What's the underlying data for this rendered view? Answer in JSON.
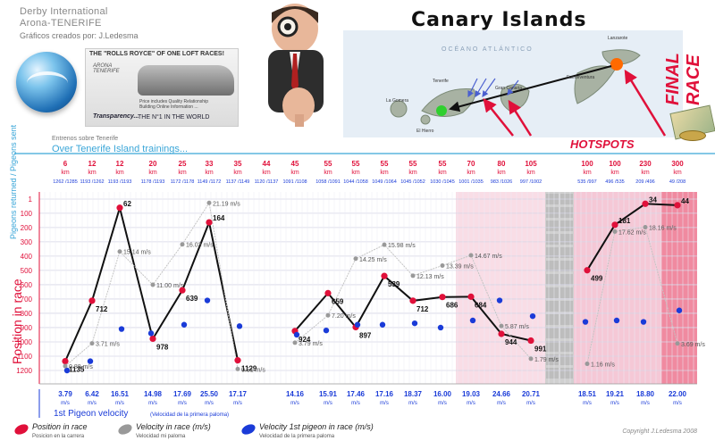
{
  "header": {
    "title_line1": "Derby International",
    "title_line2": "Arona-TENERIFE",
    "credit": "Gráficos creados por: J.Ledesma",
    "ad_headline": "THE \"ROLLS ROYCE\" OF ONE LOFT RACES!",
    "ad_logo": "ARONA TENERIFE",
    "ad_small_text": [
      "Price includes Quality Relationship",
      "Building Online Information ..."
    ],
    "ad_tagline1": "Transparency...",
    "ad_tagline2": "THE N°1 IN THE WORLD",
    "map_title": "Canary Islands",
    "map_ocean": "OCÉANO ATLÁNTICO",
    "map_labels": [
      "Tenerife",
      "La Gomera",
      "El Hierro",
      "Gran Canaria",
      "Lanzarote",
      "Fuerteventura"
    ],
    "hotspots": "HOTSPOTS",
    "final_race": "FINAL RACE",
    "training_small": "Entrenos sobre Tenerife",
    "training_big": "Over Tenerife Island trainings..."
  },
  "colors": {
    "red": "#e0103a",
    "blue": "#1a3bd8",
    "grey": "#999999",
    "cyan": "#3aa6d8",
    "pink_zone": "#f9dde6",
    "pink_zone2": "#f5c8d6",
    "stripe": "#f08aa0"
  },
  "chart_data": {
    "type": "line",
    "ylabel": "Position in race",
    "ylabel_top": "Pigeons returned / Pigeons sent",
    "yticks": [
      "1",
      "100",
      "200",
      "300",
      "400",
      "500",
      "600",
      "700",
      "800",
      "900",
      "1000",
      "1100",
      "1200"
    ],
    "ylim": [
      1,
      1250
    ],
    "distance_unit": "km",
    "races": [
      {
        "km": "6",
        "returned": "1262",
        "sent": "1285",
        "position": 1135,
        "first_velocity": "3.79",
        "velocity": 0.88,
        "first_vel_plot": 1200
      },
      {
        "km": "12",
        "returned": "1193",
        "sent": "1262",
        "position": 712,
        "first_velocity": "6.42",
        "velocity": 3.71,
        "first_vel_plot": 1135
      },
      {
        "km": "12",
        "returned": "1193",
        "sent": "1193",
        "position": 62,
        "first_velocity": "16.51",
        "velocity": 15.14,
        "first_vel_plot": 910
      },
      {
        "km": "20",
        "returned": "1178",
        "sent": "1193",
        "position": 978,
        "first_velocity": "14.98",
        "velocity": 11.0,
        "first_vel_plot": 940
      },
      {
        "km": "25",
        "returned": "1172",
        "sent": "1178",
        "position": 639,
        "first_velocity": "17.69",
        "velocity": 16.03,
        "first_vel_plot": 880
      },
      {
        "km": "33",
        "returned": "1149",
        "sent": "1172",
        "position": 164,
        "first_velocity": "25.50",
        "velocity": 21.19,
        "first_vel_plot": 710
      },
      {
        "km": "35",
        "returned": "1137",
        "sent": "1149",
        "position": 1129,
        "first_velocity": "17.17",
        "velocity": 0.51,
        "first_vel_plot": 890
      },
      {
        "km": "44",
        "returned": "1120",
        "sent": "1137",
        "position": null,
        "first_velocity": null,
        "velocity": null,
        "first_vel_plot": null
      },
      {
        "km": "45",
        "returned": "1091",
        "sent": "1108",
        "position": 924,
        "first_velocity": "14.16",
        "velocity": 3.79,
        "first_vel_plot": 950
      },
      {
        "km": "55",
        "returned": "1058",
        "sent": "1091",
        "position": 659,
        "first_velocity": "15.91",
        "velocity": 7.2,
        "first_vel_plot": 920
      },
      {
        "km": "55",
        "returned": "1044",
        "sent": "1058",
        "position": 897,
        "first_velocity": "17.46",
        "velocity": 14.25,
        "first_vel_plot": 880
      },
      {
        "km": "55",
        "returned": "1049",
        "sent": "1064",
        "position": 539,
        "first_velocity": "17.16",
        "velocity": 15.98,
        "first_vel_plot": 880
      },
      {
        "km": "55",
        "returned": "1045",
        "sent": "1052",
        "position": 712,
        "first_velocity": "18.37",
        "velocity": 12.13,
        "first_vel_plot": 870
      },
      {
        "km": "55",
        "returned": "1030",
        "sent": "1045",
        "position": 686,
        "first_velocity": "16.00",
        "velocity": 13.39,
        "first_vel_plot": 900
      },
      {
        "km": "70",
        "returned": "1001",
        "sent": "1035",
        "position": 684,
        "first_velocity": "19.03",
        "velocity": 14.67,
        "first_vel_plot": 850
      },
      {
        "km": "80",
        "returned": "983",
        "sent": "1026",
        "position": 944,
        "first_velocity": "24.66",
        "velocity": 5.87,
        "first_vel_plot": 710
      },
      {
        "km": "105",
        "returned": "997",
        "sent": "1002",
        "position": 991,
        "first_velocity": "20.71",
        "velocity": 1.79,
        "first_vel_plot": 820
      },
      {
        "km": "100",
        "returned": "535",
        "sent": "997",
        "position": 499,
        "first_velocity": "18.51",
        "velocity": 1.16,
        "first_vel_plot": 860
      },
      {
        "km": "100",
        "returned": "496",
        "sent": "535",
        "position": 181,
        "first_velocity": "19.21",
        "velocity": 17.62,
        "first_vel_plot": 850
      },
      {
        "km": "230",
        "returned": "209",
        "sent": "496",
        "position": 34,
        "first_velocity": "18.80",
        "velocity": 18.16,
        "first_vel_plot": 860
      },
      {
        "km": "300",
        "returned": "49",
        "sent": "208",
        "position": 44,
        "first_velocity": "22.00",
        "velocity": 3.69,
        "first_vel_plot": 780
      }
    ],
    "velocity_unit": "m/s",
    "first_velocity_title": "1st Pigeon velocity",
    "first_velocity_subtitle": "(Velocidad de la primera paloma)",
    "legend": [
      {
        "label": "Position in race",
        "sub": "Posicion en la carrera",
        "color": "#e0103a"
      },
      {
        "label": "Velocity in race (m/s)",
        "sub": "Velocidad mi paloma",
        "color": "#999999"
      },
      {
        "label": "Velocity 1st pigeon in race (m/s)",
        "sub": "Velocidad de la primera paloma",
        "color": "#1a3bd8"
      }
    ],
    "copyright": "Copyright J.Ledesma 2008"
  }
}
